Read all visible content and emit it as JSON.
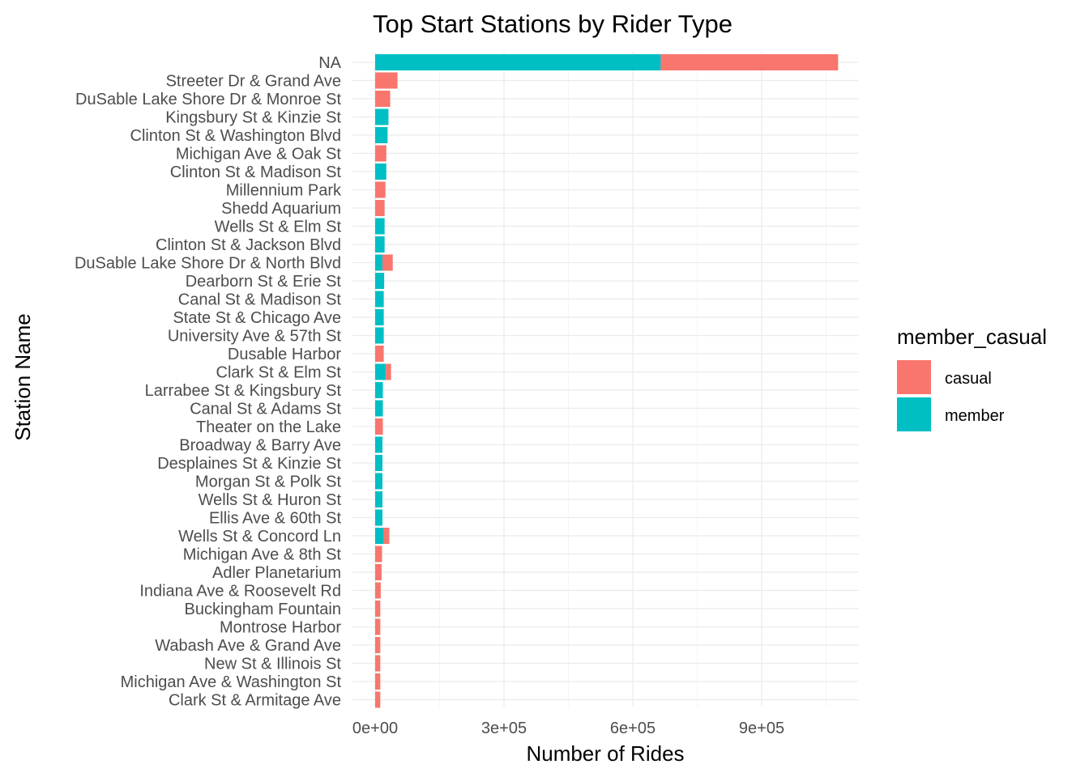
{
  "chart_data": {
    "type": "bar",
    "orientation": "horizontal",
    "stacked": true,
    "title": "Top Start Stations by Rider Type",
    "xlabel": "Number of Rides",
    "ylabel": "Station Name",
    "xlim": [
      0,
      1130000
    ],
    "xticks": [
      0,
      300000,
      600000,
      900000
    ],
    "xtick_labels": [
      "0e+00",
      "3e+05",
      "6e+05",
      "9e+05"
    ],
    "grid": true,
    "legend": {
      "title": "member_casual",
      "position": "right",
      "entries": [
        {
          "label": "casual",
          "color": "#F8766D"
        },
        {
          "label": "member",
          "color": "#00BFC4"
        }
      ]
    },
    "categories": [
      "NA",
      "Streeter Dr & Grand Ave",
      "DuSable Lake Shore Dr & Monroe St",
      "Kingsbury St & Kinzie St",
      "Clinton St & Washington Blvd",
      "Michigan Ave & Oak St",
      "Clinton St & Madison St",
      "Millennium Park",
      "Shedd Aquarium",
      "Wells St & Elm St",
      "Clinton St & Jackson Blvd",
      "DuSable Lake Shore Dr & North Blvd",
      "Dearborn St & Erie St",
      "Canal St & Madison St",
      "State St & Chicago Ave",
      "University Ave & 57th St",
      "Dusable Harbor",
      "Clark St & Elm St",
      "Larrabee St & Kingsbury St",
      "Canal St & Adams St",
      "Theater on the Lake",
      "Broadway & Barry Ave",
      "Desplaines St & Kinzie St",
      "Morgan St & Polk St",
      "Wells St & Huron St",
      "Ellis Ave & 60th St",
      "Wells St & Concord Ln",
      "Michigan Ave & 8th St",
      "Adler Planetarium",
      "Indiana Ave & Roosevelt Rd",
      "Buckingham Fountain",
      "Montrose Harbor",
      "Wabash Ave & Grand Ave",
      "New St & Illinois St",
      "Michigan Ave & Washington St",
      "Clark St & Armitage Ave"
    ],
    "series": [
      {
        "name": "member",
        "color": "#00BFC4",
        "values": [
          665000,
          0,
          0,
          31000,
          29000,
          0,
          26000,
          0,
          0,
          22000,
          22000,
          17000,
          21000,
          20000,
          20000,
          20000,
          0,
          25000,
          18000,
          18000,
          0,
          17000,
          17000,
          17000,
          17000,
          17000,
          20000,
          0,
          0,
          0,
          0,
          0,
          0,
          0,
          0,
          0
        ]
      },
      {
        "name": "casual",
        "color": "#F8766D",
        "values": [
          413000,
          52000,
          35000,
          0,
          0,
          26000,
          0,
          24000,
          22000,
          0,
          0,
          24000,
          0,
          0,
          0,
          0,
          20000,
          12000,
          0,
          0,
          18000,
          0,
          0,
          0,
          0,
          0,
          13000,
          16000,
          15000,
          13000,
          12000,
          12000,
          12000,
          12000,
          12000,
          12000
        ]
      }
    ]
  }
}
